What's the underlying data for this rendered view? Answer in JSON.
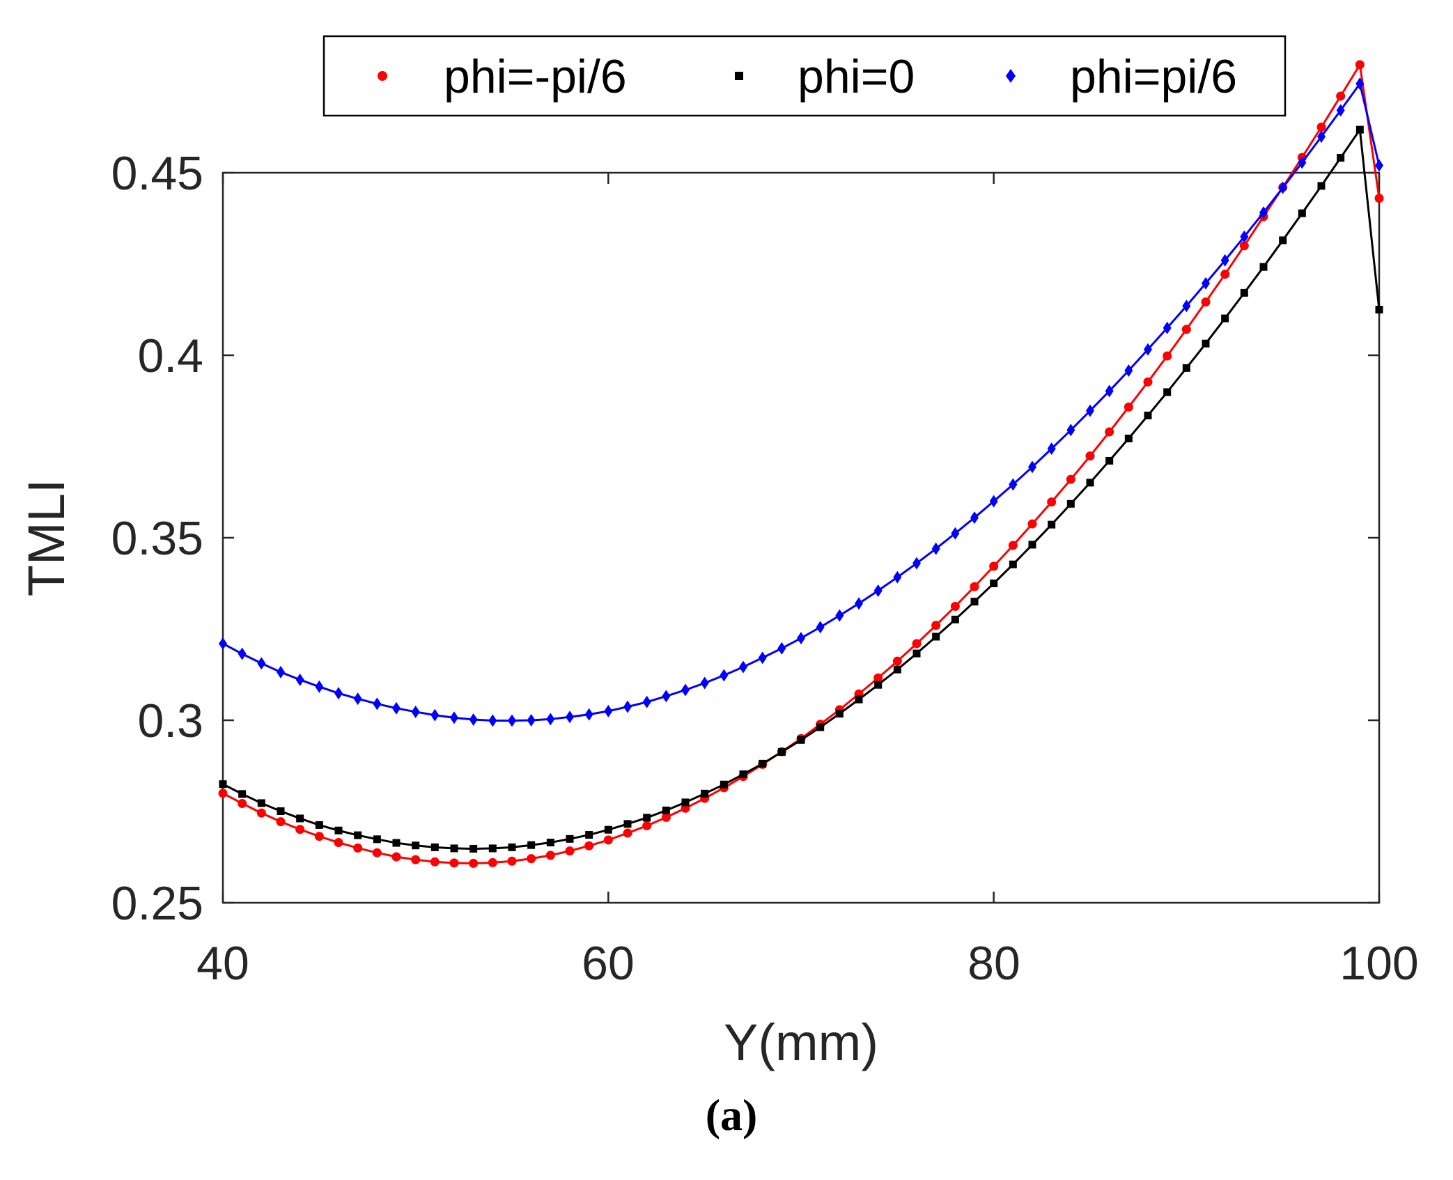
{
  "caption": "(a)",
  "chart_data": {
    "type": "line",
    "xlabel": "Y(mm)",
    "ylabel": "TMLI",
    "xlim": [
      40,
      100
    ],
    "ylim": [
      0.25,
      0.45
    ],
    "xticks": [
      40,
      60,
      80,
      100
    ],
    "xtick_labels": [
      "40",
      "60",
      "80",
      "100"
    ],
    "yticks": [
      0.25,
      0.3,
      0.35,
      0.4,
      0.45
    ],
    "ytick_labels": [
      "0.25",
      "0.3",
      "0.35",
      "0.4",
      "0.45"
    ],
    "legend_position": "top-center",
    "series": [
      {
        "name": "phi=-pi/6",
        "color": "#ff0000",
        "marker": "circle",
        "x": [
          40,
          41,
          42,
          43,
          44,
          45,
          46,
          47,
          48,
          49,
          50,
          51,
          52,
          53,
          54,
          55,
          56,
          57,
          58,
          59,
          60,
          61,
          62,
          63,
          64,
          65,
          66,
          67,
          68,
          69,
          70,
          71,
          72,
          73,
          74,
          75,
          76,
          77,
          78,
          79,
          80,
          81,
          82,
          83,
          84,
          85,
          86,
          87,
          88,
          89,
          90,
          91,
          92,
          93,
          94,
          95,
          96,
          97,
          98,
          99,
          100
        ],
        "values": [
          0.28,
          0.2772,
          0.2746,
          0.2722,
          0.2701,
          0.2682,
          0.2665,
          0.265,
          0.2637,
          0.2626,
          0.2618,
          0.2612,
          0.2609,
          0.2608,
          0.261,
          0.2614,
          0.2621,
          0.263,
          0.2642,
          0.2656,
          0.2672,
          0.2691,
          0.2711,
          0.2734,
          0.2759,
          0.2786,
          0.2815,
          0.2846,
          0.2879,
          0.2914,
          0.295,
          0.2989,
          0.3029,
          0.3072,
          0.3116,
          0.3162,
          0.321,
          0.326,
          0.3312,
          0.3366,
          0.3422,
          0.3479,
          0.3538,
          0.3598,
          0.366,
          0.3724,
          0.379,
          0.3858,
          0.3927,
          0.3998,
          0.4071,
          0.4146,
          0.4222,
          0.43,
          0.438,
          0.446,
          0.4542,
          0.4625,
          0.471,
          0.4796,
          0.443
        ]
      },
      {
        "name": "phi=0",
        "color": "#000000",
        "marker": "square",
        "x": [
          40,
          41,
          42,
          43,
          44,
          45,
          46,
          47,
          48,
          49,
          50,
          51,
          52,
          53,
          54,
          55,
          56,
          57,
          58,
          59,
          60,
          61,
          62,
          63,
          64,
          65,
          66,
          67,
          68,
          69,
          70,
          71,
          72,
          73,
          74,
          75,
          76,
          77,
          78,
          79,
          80,
          81,
          82,
          83,
          84,
          85,
          86,
          87,
          88,
          89,
          90,
          91,
          92,
          93,
          94,
          95,
          96,
          97,
          98,
          99,
          100
        ],
        "values": [
          0.2825,
          0.2798,
          0.2773,
          0.2751,
          0.2731,
          0.2713,
          0.2698,
          0.2685,
          0.2674,
          0.2664,
          0.2657,
          0.2652,
          0.2649,
          0.2648,
          0.2649,
          0.2652,
          0.2658,
          0.2665,
          0.2675,
          0.2686,
          0.27,
          0.2716,
          0.2733,
          0.2753,
          0.2775,
          0.2799,
          0.2824,
          0.2852,
          0.2881,
          0.2913,
          0.2946,
          0.2981,
          0.3018,
          0.3057,
          0.3097,
          0.3139,
          0.3183,
          0.3229,
          0.3276,
          0.3325,
          0.3375,
          0.3427,
          0.3481,
          0.3536,
          0.3593,
          0.3651,
          0.3711,
          0.3772,
          0.3835,
          0.3899,
          0.3965,
          0.4032,
          0.4101,
          0.4171,
          0.4242,
          0.4315,
          0.4389,
          0.4464,
          0.4541,
          0.4618,
          0.4125
        ]
      },
      {
        "name": "phi=pi/6",
        "color": "#0000ff",
        "marker": "diamond",
        "x": [
          40,
          41,
          42,
          43,
          44,
          45,
          46,
          47,
          48,
          49,
          50,
          51,
          52,
          53,
          54,
          55,
          56,
          57,
          58,
          59,
          60,
          61,
          62,
          63,
          64,
          65,
          66,
          67,
          68,
          69,
          70,
          71,
          72,
          73,
          74,
          75,
          76,
          77,
          78,
          79,
          80,
          81,
          82,
          83,
          84,
          85,
          86,
          87,
          88,
          89,
          90,
          91,
          92,
          93,
          94,
          95,
          96,
          97,
          98,
          99,
          100
        ],
        "values": [
          0.321,
          0.3182,
          0.3156,
          0.3132,
          0.3111,
          0.3092,
          0.3074,
          0.3059,
          0.3045,
          0.3033,
          0.3023,
          0.3014,
          0.3007,
          0.3002,
          0.2999,
          0.2999,
          0.3,
          0.3003,
          0.3009,
          0.3016,
          0.3025,
          0.3037,
          0.305,
          0.3066,
          0.3083,
          0.3102,
          0.3123,
          0.3146,
          0.3171,
          0.3197,
          0.3225,
          0.3255,
          0.3287,
          0.332,
          0.3355,
          0.3392,
          0.343,
          0.347,
          0.3512,
          0.3555,
          0.36,
          0.3646,
          0.3694,
          0.3744,
          0.3795,
          0.3848,
          0.3902,
          0.3958,
          0.4016,
          0.4075,
          0.4135,
          0.4197,
          0.426,
          0.4325,
          0.4391,
          0.4459,
          0.4528,
          0.4599,
          0.4671,
          0.4744,
          0.452
        ]
      }
    ]
  }
}
